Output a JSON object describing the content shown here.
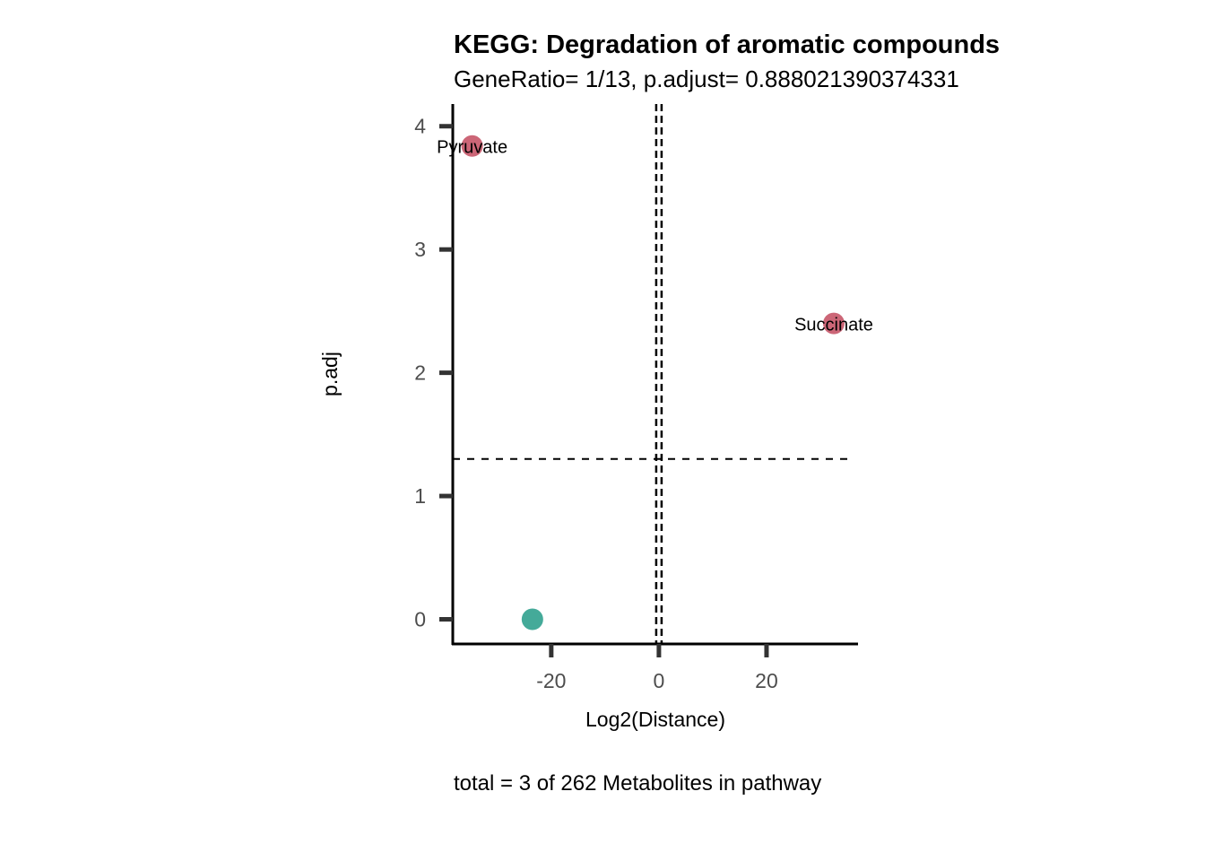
{
  "chart_data": {
    "type": "scatter",
    "title": "KEGG: Degradation of aromatic compounds",
    "subtitle": "GeneRatio= 1/13, p.adjust= 0.888021390374331",
    "caption": "total = 3 of 262 Metabolites in pathway",
    "xlabel": "Log2(Distance)",
    "ylabel": "p.adj",
    "xlim": [
      -38.3,
      37
    ],
    "ylim": [
      -0.2,
      4.18
    ],
    "xticks": [
      -20,
      0,
      20
    ],
    "xtick_labels": [
      "-20",
      "0",
      "20"
    ],
    "yticks": [
      0,
      1,
      2,
      3,
      4
    ],
    "ytick_labels": [
      "0",
      "1",
      "2",
      "3",
      "4"
    ],
    "grid": false,
    "hline": 1.301,
    "vlines": [
      -0.5,
      0.5
    ],
    "points": [
      {
        "label": "Pyruvate",
        "x": -34.7,
        "y": 3.84,
        "color": "#CC6677"
      },
      {
        "label": "Succinate",
        "x": 32.5,
        "y": 2.4,
        "color": "#CC6677"
      },
      {
        "label": "",
        "x": -23.5,
        "y": 0,
        "color": "#44AA99"
      }
    ]
  }
}
